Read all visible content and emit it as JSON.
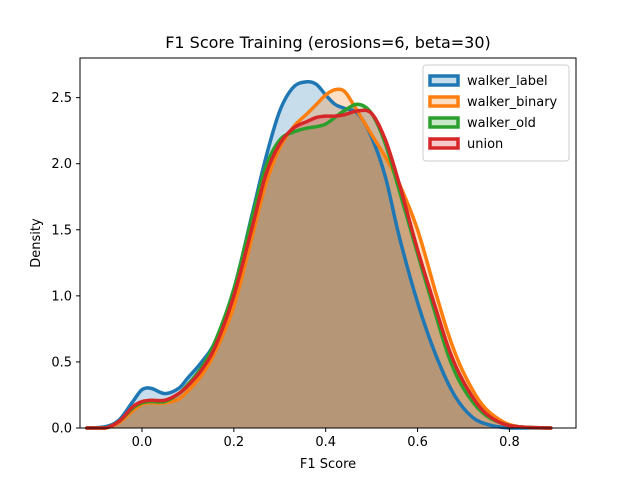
{
  "chart_data": {
    "type": "area",
    "title": "F1 Score Training (erosions=6, beta=30)",
    "xlabel": "F1 Score",
    "ylabel": "Density",
    "xlim": [
      -0.135,
      0.945
    ],
    "ylim": [
      0,
      2.8
    ],
    "xticks": [
      "0.0",
      "0.2",
      "0.4",
      "0.6",
      "0.8"
    ],
    "yticks": [
      "0.0",
      "0.5",
      "1.0",
      "1.5",
      "2.0",
      "2.5"
    ],
    "grid": false,
    "legend_position": "top-right",
    "series": [
      {
        "name": "walker_label",
        "color": "#1f77b4",
        "x": [
          -0.12,
          -0.08,
          -0.05,
          -0.02,
          0.0,
          0.02,
          0.05,
          0.08,
          0.1,
          0.13,
          0.16,
          0.2,
          0.24,
          0.27,
          0.3,
          0.33,
          0.36,
          0.38,
          0.4,
          0.42,
          0.44,
          0.47,
          0.5,
          0.53,
          0.56,
          0.6,
          0.64,
          0.68,
          0.72,
          0.76,
          0.8,
          0.85,
          0.89
        ],
        "y": [
          0.0,
          0.01,
          0.06,
          0.2,
          0.29,
          0.3,
          0.26,
          0.3,
          0.38,
          0.5,
          0.66,
          1.05,
          1.62,
          2.05,
          2.4,
          2.58,
          2.62,
          2.6,
          2.52,
          2.45,
          2.42,
          2.38,
          2.2,
          1.9,
          1.45,
          0.95,
          0.55,
          0.25,
          0.08,
          0.02,
          0.0,
          0.0,
          0.0
        ]
      },
      {
        "name": "walker_binary",
        "color": "#ff7f0e",
        "x": [
          -0.12,
          -0.08,
          -0.05,
          -0.02,
          0.0,
          0.02,
          0.05,
          0.08,
          0.1,
          0.13,
          0.16,
          0.2,
          0.24,
          0.27,
          0.3,
          0.33,
          0.36,
          0.38,
          0.4,
          0.42,
          0.44,
          0.46,
          0.5,
          0.53,
          0.56,
          0.6,
          0.64,
          0.67,
          0.7,
          0.74,
          0.78,
          0.82,
          0.89
        ],
        "y": [
          0.0,
          0.0,
          0.04,
          0.13,
          0.18,
          0.19,
          0.19,
          0.22,
          0.28,
          0.4,
          0.58,
          0.92,
          1.45,
          1.85,
          2.12,
          2.28,
          2.38,
          2.45,
          2.52,
          2.56,
          2.55,
          2.45,
          2.22,
          2.05,
          1.85,
          1.5,
          1.02,
          0.68,
          0.42,
          0.18,
          0.06,
          0.01,
          0.0
        ]
      },
      {
        "name": "walker_old",
        "color": "#2ca02c",
        "x": [
          -0.12,
          -0.08,
          -0.05,
          -0.02,
          0.0,
          0.02,
          0.05,
          0.08,
          0.1,
          0.13,
          0.16,
          0.2,
          0.24,
          0.27,
          0.3,
          0.33,
          0.36,
          0.38,
          0.4,
          0.42,
          0.44,
          0.47,
          0.5,
          0.53,
          0.56,
          0.6,
          0.64,
          0.67,
          0.7,
          0.74,
          0.78,
          0.82,
          0.89
        ],
        "y": [
          0.0,
          0.0,
          0.05,
          0.15,
          0.19,
          0.2,
          0.2,
          0.26,
          0.33,
          0.46,
          0.66,
          1.05,
          1.6,
          1.98,
          2.18,
          2.24,
          2.27,
          2.28,
          2.3,
          2.35,
          2.4,
          2.45,
          2.38,
          2.15,
          1.8,
          1.32,
          0.85,
          0.52,
          0.3,
          0.12,
          0.04,
          0.01,
          0.0
        ]
      },
      {
        "name": "union",
        "color": "#d62728",
        "x": [
          -0.12,
          -0.08,
          -0.05,
          -0.02,
          0.0,
          0.02,
          0.05,
          0.08,
          0.1,
          0.13,
          0.16,
          0.2,
          0.24,
          0.27,
          0.3,
          0.33,
          0.36,
          0.38,
          0.4,
          0.42,
          0.44,
          0.47,
          0.5,
          0.53,
          0.56,
          0.6,
          0.64,
          0.67,
          0.7,
          0.74,
          0.78,
          0.82,
          0.89
        ],
        "y": [
          0.0,
          0.0,
          0.05,
          0.16,
          0.2,
          0.21,
          0.21,
          0.26,
          0.32,
          0.44,
          0.62,
          1.0,
          1.52,
          1.92,
          2.15,
          2.27,
          2.32,
          2.35,
          2.36,
          2.36,
          2.37,
          2.4,
          2.38,
          2.18,
          1.85,
          1.35,
          0.9,
          0.58,
          0.35,
          0.14,
          0.04,
          0.01,
          0.0
        ]
      }
    ]
  }
}
